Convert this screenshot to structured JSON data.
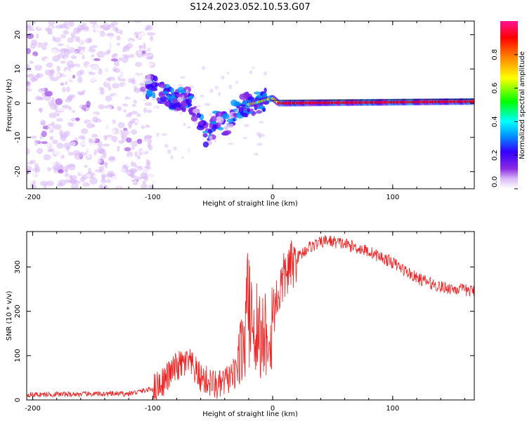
{
  "title": "S124.2023.052.10.53.G07",
  "colors": {
    "snr_line": "#ee2222",
    "colormap": [
      "#ffffff",
      "#d9b8f7",
      "#8a2be2",
      "#3300ff",
      "#0099ff",
      "#00ffff",
      "#00ff00",
      "#ffff00",
      "#ff8800",
      "#ff0000",
      "#ff1493"
    ]
  },
  "chart_data": [
    {
      "type": "heatmap",
      "xlabel": "Height of straight line (km)",
      "ylabel": "Frequency (Hz)",
      "x_ticks": [
        "-200",
        "-100",
        "0",
        "100"
      ],
      "y_ticks": [
        "20",
        "10",
        "0",
        "-10",
        "-20"
      ],
      "xlim": [
        -205,
        168
      ],
      "ylim": [
        -25,
        24
      ],
      "colorbar": {
        "label": "Normalized spectral amplitude",
        "ticks": [
          "0.0",
          "0.2",
          "0.4",
          "0.6",
          "0.8"
        ],
        "range": [
          0,
          1
        ]
      },
      "ridge": {
        "description_points": [
          {
            "x": -100,
            "y": 5
          },
          {
            "x": -85,
            "y": 1
          },
          {
            "x": -70,
            "y": 1
          },
          {
            "x": -60,
            "y": -5
          },
          {
            "x": -55,
            "y": -10
          },
          {
            "x": -45,
            "y": -4
          },
          {
            "x": -38,
            "y": -7
          },
          {
            "x": -30,
            "y": -1
          },
          {
            "x": -15,
            "y": 0
          },
          {
            "x": 0,
            "y": 1.5
          },
          {
            "x": 5,
            "y": 0
          },
          {
            "x": 168,
            "y": 0.5
          }
        ]
      }
    },
    {
      "type": "line",
      "xlabel": "Height of straight line (km)",
      "ylabel": "SNR (10 * v/v)",
      "x_ticks": [
        "-200",
        "-100",
        "0",
        "100"
      ],
      "y_ticks": [
        "0",
        "100",
        "200",
        "300"
      ],
      "xlim": [
        -205,
        168
      ],
      "ylim": [
        0,
        380
      ],
      "envelope": [
        {
          "x": -205,
          "y": 12
        },
        {
          "x": -120,
          "y": 14
        },
        {
          "x": -100,
          "y": 25
        },
        {
          "x": -90,
          "y": 45
        },
        {
          "x": -80,
          "y": 75
        },
        {
          "x": -70,
          "y": 85
        },
        {
          "x": -60,
          "y": 50
        },
        {
          "x": -45,
          "y": 30
        },
        {
          "x": -32,
          "y": 60
        },
        {
          "x": -25,
          "y": 150
        },
        {
          "x": -20,
          "y": 250
        },
        {
          "x": -10,
          "y": 170
        },
        {
          "x": 0,
          "y": 200
        },
        {
          "x": 10,
          "y": 280
        },
        {
          "x": 20,
          "y": 320
        },
        {
          "x": 30,
          "y": 345
        },
        {
          "x": 45,
          "y": 360
        },
        {
          "x": 60,
          "y": 352
        },
        {
          "x": 80,
          "y": 335
        },
        {
          "x": 100,
          "y": 310
        },
        {
          "x": 120,
          "y": 275
        },
        {
          "x": 140,
          "y": 255
        },
        {
          "x": 168,
          "y": 245
        }
      ]
    }
  ]
}
